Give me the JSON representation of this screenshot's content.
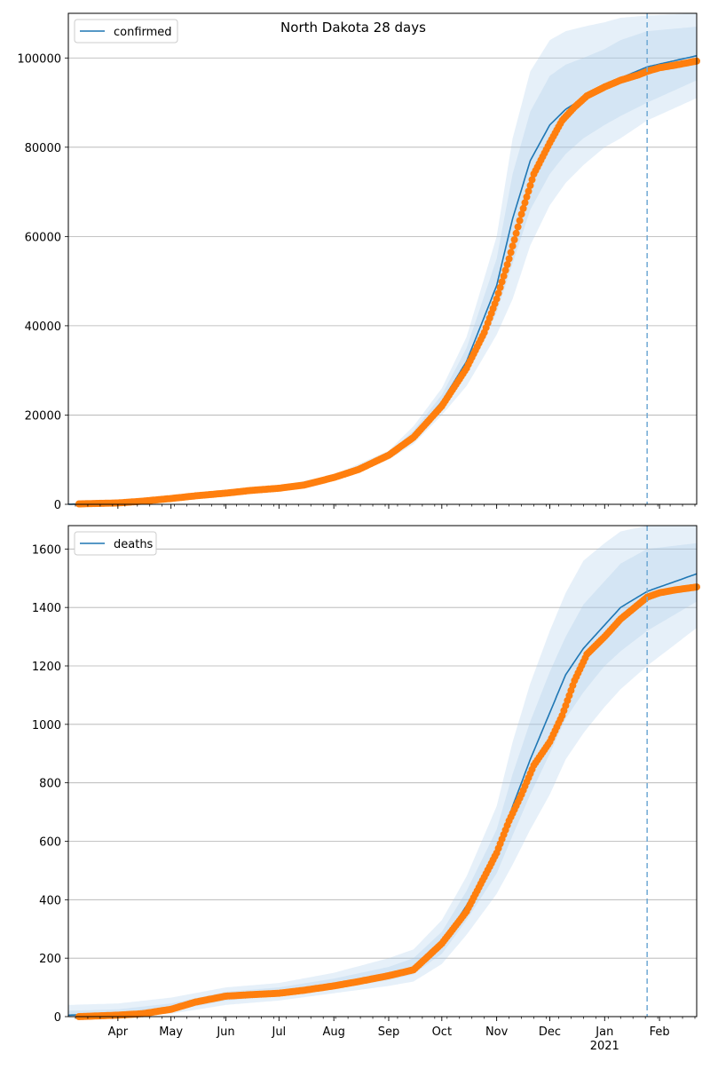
{
  "figure": {
    "title": "North Dakota 28 days"
  },
  "x_axis": {
    "tick_labels": [
      "Apr",
      "May",
      "Jun",
      "Jul",
      "Aug",
      "Sep",
      "Oct",
      "Nov",
      "Dec",
      "Jan",
      "Feb"
    ],
    "year_label": "2021"
  },
  "colors": {
    "model": "#1f77b4",
    "observed": "#ff7f0e",
    "band": "#a6c8e8",
    "forecast_line": "#6fa8d4",
    "grid": "#b0b0b0"
  },
  "chart_data": [
    {
      "type": "line",
      "panel": "top",
      "legend_position": "top-left",
      "grid": "horizontal",
      "xlim": [
        "2020-03-04",
        "2021-02-22"
      ],
      "ylim": [
        0,
        110000
      ],
      "yticks": [
        0,
        20000,
        40000,
        60000,
        80000,
        100000
      ],
      "forecast_start": "2021-01-25",
      "series": [
        {
          "name": "confirmed",
          "x": [
            "2020-03-04",
            "2020-04-01",
            "2020-05-01",
            "2020-06-01",
            "2020-07-01",
            "2020-08-01",
            "2020-09-01",
            "2020-09-15",
            "2020-10-01",
            "2020-10-15",
            "2020-11-01",
            "2020-11-10",
            "2020-11-20",
            "2020-12-01",
            "2020-12-10",
            "2020-12-20",
            "2021-01-01",
            "2021-01-10",
            "2021-01-25",
            "2021-02-22"
          ],
          "y": [
            0,
            300,
            1300,
            2600,
            3700,
            6000,
            11000,
            15500,
            23000,
            32000,
            49000,
            64000,
            77000,
            85000,
            88500,
            91000,
            93500,
            95500,
            98000,
            100500
          ],
          "bands": [
            {
              "lower": [
                0,
                250,
                1200,
                2400,
                3500,
                5700,
                10500,
                14500,
                21500,
                29000,
                43000,
                54000,
                66000,
                74000,
                78500,
                82000,
                85000,
                87000,
                90000,
                95000
              ],
              "upper": [
                0,
                350,
                1400,
                2800,
                3900,
                6300,
                11500,
                16500,
                24500,
                35000,
                55000,
                74000,
                88000,
                96000,
                98500,
                100000,
                102000,
                104000,
                106000,
                107000
              ]
            },
            {
              "lower": [
                0,
                200,
                1100,
                2200,
                3300,
                5400,
                10000,
                13500,
                20000,
                26500,
                38000,
                46000,
                58000,
                67000,
                72000,
                76000,
                80000,
                82000,
                86000,
                91000
              ],
              "upper": [
                0,
                400,
                1500,
                3000,
                4100,
                6600,
                12000,
                17500,
                26000,
                37500,
                60000,
                82000,
                97000,
                104000,
                106000,
                107000,
                108000,
                109000,
                109500,
                110000
              ]
            }
          ]
        },
        {
          "name": "",
          "kind": "observed",
          "x": [
            "2020-03-10",
            "2020-04-01",
            "2020-04-15",
            "2020-05-01",
            "2020-05-15",
            "2020-06-01",
            "2020-06-15",
            "2020-07-01",
            "2020-07-15",
            "2020-08-01",
            "2020-08-15",
            "2020-09-01",
            "2020-09-15",
            "2020-10-01",
            "2020-10-15",
            "2020-10-25",
            "2020-11-01",
            "2020-11-08",
            "2020-11-15",
            "2020-11-22",
            "2020-12-01",
            "2020-12-08",
            "2020-12-15",
            "2020-12-22",
            "2021-01-01",
            "2021-01-10",
            "2021-01-20",
            "2021-01-25",
            "2021-02-01",
            "2021-02-10",
            "2021-02-22"
          ],
          "y": [
            100,
            300,
            700,
            1300,
            1900,
            2500,
            3100,
            3600,
            4300,
            6000,
            7800,
            11000,
            15000,
            22000,
            30500,
            38500,
            46000,
            55000,
            65000,
            74000,
            81000,
            86000,
            89000,
            91500,
            93500,
            95000,
            96200,
            97000,
            97800,
            98400,
            99300
          ]
        }
      ]
    },
    {
      "type": "line",
      "panel": "bottom",
      "legend_position": "top-left",
      "grid": "horizontal",
      "xlim": [
        "2020-03-04",
        "2021-02-22"
      ],
      "ylim": [
        0,
        1680
      ],
      "yticks": [
        0,
        200,
        400,
        600,
        800,
        1000,
        1200,
        1400,
        1600
      ],
      "forecast_start": "2021-01-25",
      "series": [
        {
          "name": "deaths",
          "x": [
            "2020-03-04",
            "2020-04-01",
            "2020-05-01",
            "2020-06-01",
            "2020-07-01",
            "2020-08-01",
            "2020-09-01",
            "2020-09-15",
            "2020-10-01",
            "2020-10-15",
            "2020-11-01",
            "2020-11-10",
            "2020-11-20",
            "2020-12-01",
            "2020-12-10",
            "2020-12-20",
            "2021-01-01",
            "2021-01-10",
            "2021-01-25",
            "2021-02-22"
          ],
          "y": [
            5,
            10,
            30,
            70,
            85,
            110,
            145,
            170,
            250,
            380,
            560,
            720,
            880,
            1040,
            1170,
            1260,
            1340,
            1400,
            1455,
            1515
          ],
          "bands": [
            {
              "lower": [
                0,
                5,
                20,
                55,
                70,
                95,
                125,
                145,
                215,
                330,
                490,
                620,
                760,
                900,
                1020,
                1110,
                1200,
                1250,
                1320,
                1420
              ],
              "upper": [
                20,
                25,
                45,
                85,
                100,
                130,
                170,
                200,
                290,
                430,
                640,
                830,
                1010,
                1180,
                1300,
                1410,
                1490,
                1550,
                1600,
                1620
              ]
            },
            {
              "lower": [
                0,
                0,
                10,
                40,
                55,
                80,
                105,
                120,
                180,
                280,
                420,
                520,
                640,
                760,
                880,
                970,
                1060,
                1120,
                1200,
                1330
              ],
              "upper": [
                40,
                45,
                65,
                100,
                115,
                150,
                200,
                230,
                330,
                480,
                720,
                940,
                1140,
                1320,
                1450,
                1560,
                1620,
                1660,
                1680,
                1680
              ]
            }
          ]
        },
        {
          "name": "",
          "kind": "observed",
          "x": [
            "2020-03-10",
            "2020-04-01",
            "2020-04-15",
            "2020-05-01",
            "2020-05-15",
            "2020-06-01",
            "2020-06-15",
            "2020-07-01",
            "2020-07-15",
            "2020-08-01",
            "2020-08-15",
            "2020-09-01",
            "2020-09-15",
            "2020-10-01",
            "2020-10-15",
            "2020-11-01",
            "2020-11-08",
            "2020-11-15",
            "2020-11-22",
            "2020-12-01",
            "2020-12-08",
            "2020-12-15",
            "2020-12-22",
            "2021-01-01",
            "2021-01-10",
            "2021-01-20",
            "2021-01-25",
            "2021-02-01",
            "2021-02-10",
            "2021-02-22"
          ],
          "y": [
            0,
            5,
            10,
            25,
            50,
            70,
            75,
            80,
            90,
            105,
            120,
            140,
            160,
            250,
            360,
            560,
            670,
            760,
            860,
            940,
            1030,
            1150,
            1240,
            1300,
            1360,
            1410,
            1435,
            1450,
            1460,
            1470
          ]
        }
      ]
    }
  ]
}
